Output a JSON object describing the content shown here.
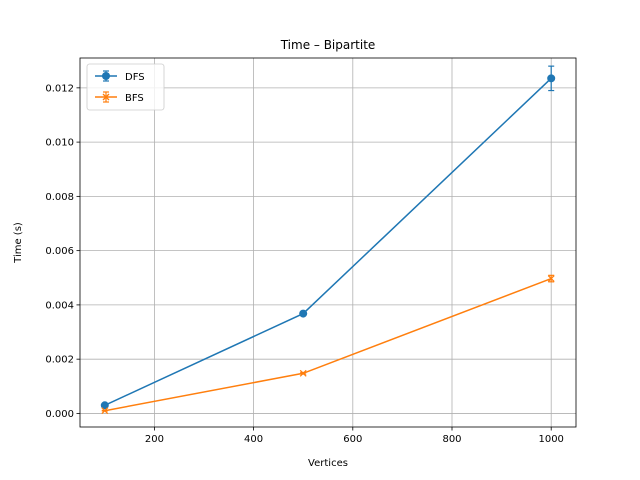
{
  "chart_data": {
    "type": "line",
    "title": "Time – Bipartite",
    "xlabel": "Vertices",
    "ylabel": "Time (s)",
    "x": [
      100,
      500,
      1000
    ],
    "xlim": [
      50,
      1050
    ],
    "ylim": [
      -0.0005,
      0.0131
    ],
    "xticks": [
      200,
      400,
      600,
      800,
      1000
    ],
    "yticks": [
      0.0,
      0.002,
      0.004,
      0.006,
      0.008,
      0.01,
      0.012
    ],
    "ytick_labels": [
      "0.000",
      "0.002",
      "0.004",
      "0.006",
      "0.008",
      "0.010",
      "0.012"
    ],
    "grid": true,
    "legend_position": "top-left",
    "series": [
      {
        "name": "DFS",
        "values": [
          0.0003,
          0.00368,
          0.01235
        ],
        "errors": [
          2e-05,
          5e-05,
          0.00045
        ],
        "color": "#1f77b4",
        "marker": "circle"
      },
      {
        "name": "BFS",
        "values": [
          0.0001,
          0.00148,
          0.00497
        ],
        "errors": [
          1e-05,
          3e-05,
          0.00012
        ],
        "color": "#ff7f0e",
        "marker": "x"
      }
    ]
  }
}
